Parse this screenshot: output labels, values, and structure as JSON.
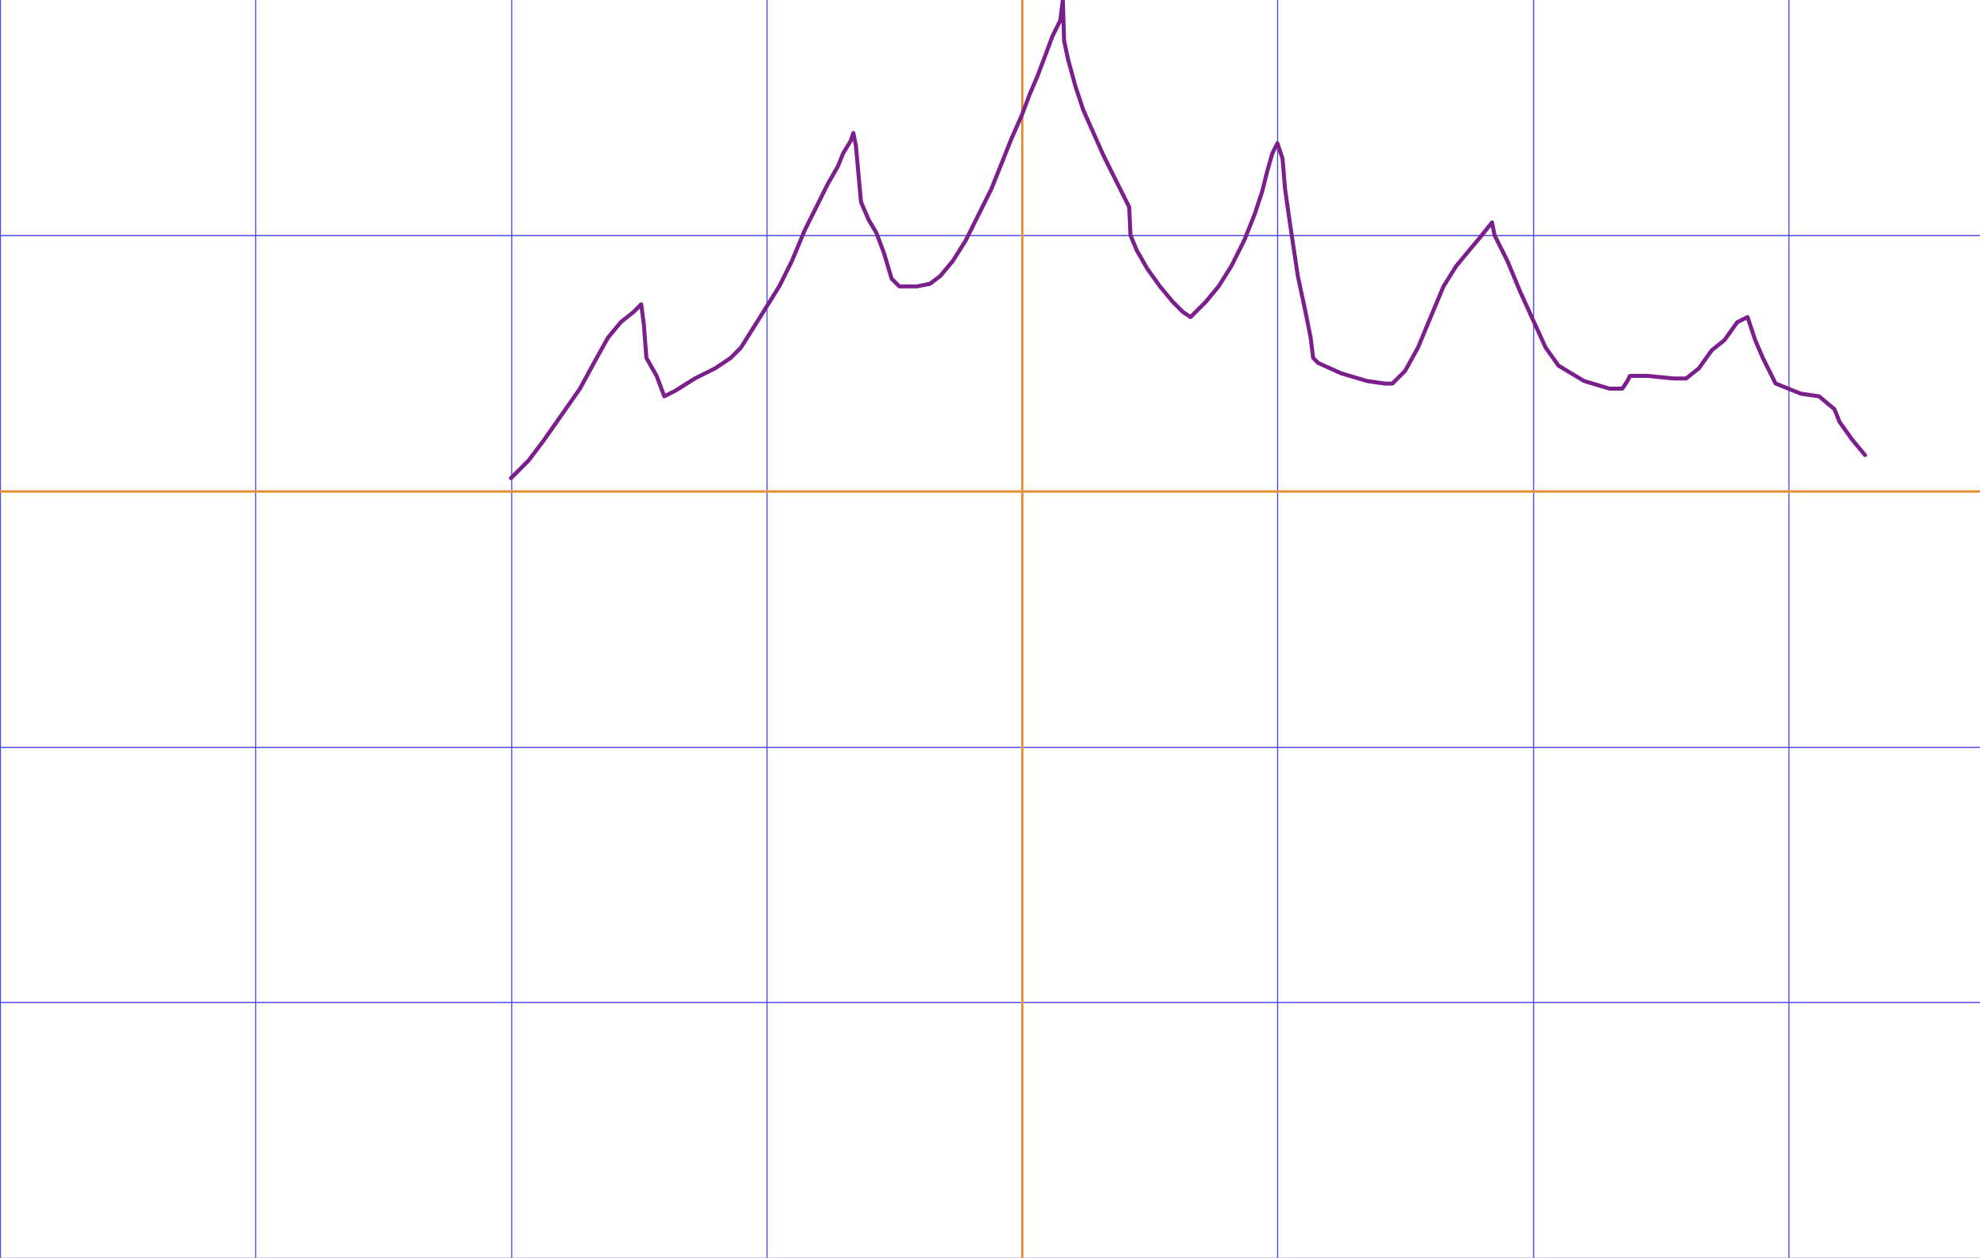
{
  "chart_data": {
    "type": "line",
    "xlim": [
      -4,
      3.75
    ],
    "ylim": [
      -3,
      1.92
    ],
    "grid": true,
    "x_gridlines": [
      -4,
      -3,
      -2,
      -1,
      0,
      1,
      2,
      3
    ],
    "y_gridlines": [
      1,
      0,
      -1,
      -2,
      -3
    ],
    "axes": {
      "x_zero": 0,
      "y_zero": 0
    },
    "colors": {
      "grid": "#4a4ae8",
      "axis": "#e8923a",
      "series": "#7a1f8c",
      "background": "#ffffff"
    },
    "series": [
      {
        "points": [
          [
            -2.0,
            0.05
          ],
          [
            -1.93,
            0.12
          ],
          [
            -1.87,
            0.2
          ],
          [
            -1.8,
            0.3
          ],
          [
            -1.73,
            0.4
          ],
          [
            -1.67,
            0.51
          ],
          [
            -1.62,
            0.6
          ],
          [
            -1.57,
            0.66
          ],
          [
            -1.52,
            0.7
          ],
          [
            -1.49,
            0.73
          ],
          [
            -1.48,
            0.65
          ],
          [
            -1.47,
            0.52
          ],
          [
            -1.43,
            0.45
          ],
          [
            -1.4,
            0.37
          ],
          [
            -1.36,
            0.39
          ],
          [
            -1.28,
            0.44
          ],
          [
            -1.2,
            0.48
          ],
          [
            -1.14,
            0.52
          ],
          [
            -1.1,
            0.56
          ],
          [
            -1.05,
            0.64
          ],
          [
            -1.0,
            0.72
          ],
          [
            -0.95,
            0.8
          ],
          [
            -0.9,
            0.9
          ],
          [
            -0.85,
            1.02
          ],
          [
            -0.8,
            1.12
          ],
          [
            -0.76,
            1.2
          ],
          [
            -0.72,
            1.27
          ],
          [
            -0.7,
            1.32
          ],
          [
            -0.67,
            1.37
          ],
          [
            -0.66,
            1.4
          ],
          [
            -0.65,
            1.35
          ],
          [
            -0.63,
            1.13
          ],
          [
            -0.6,
            1.06
          ],
          [
            -0.57,
            1.01
          ],
          [
            -0.54,
            0.93
          ],
          [
            -0.51,
            0.83
          ],
          [
            -0.48,
            0.8
          ],
          [
            -0.41,
            0.8
          ],
          [
            -0.36,
            0.81
          ],
          [
            -0.32,
            0.84
          ],
          [
            -0.27,
            0.9
          ],
          [
            -0.22,
            0.98
          ],
          [
            -0.17,
            1.08
          ],
          [
            -0.12,
            1.18
          ],
          [
            -0.08,
            1.28
          ],
          [
            -0.04,
            1.38
          ],
          [
            0.0,
            1.47
          ],
          [
            0.03,
            1.55
          ],
          [
            0.06,
            1.62
          ],
          [
            0.09,
            1.7
          ],
          [
            0.12,
            1.78
          ],
          [
            0.15,
            1.84
          ],
          [
            0.16,
            1.92
          ],
          [
            0.165,
            1.76
          ],
          [
            0.18,
            1.69
          ],
          [
            0.21,
            1.58
          ],
          [
            0.24,
            1.49
          ],
          [
            0.28,
            1.4
          ],
          [
            0.32,
            1.31
          ],
          [
            0.36,
            1.23
          ],
          [
            0.39,
            1.17
          ],
          [
            0.42,
            1.11
          ],
          [
            0.425,
            1.0
          ],
          [
            0.45,
            0.94
          ],
          [
            0.49,
            0.87
          ],
          [
            0.54,
            0.8
          ],
          [
            0.59,
            0.74
          ],
          [
            0.63,
            0.7
          ],
          [
            0.66,
            0.68
          ],
          [
            0.68,
            0.7
          ],
          [
            0.72,
            0.74
          ],
          [
            0.77,
            0.8
          ],
          [
            0.82,
            0.88
          ],
          [
            0.87,
            0.98
          ],
          [
            0.91,
            1.08
          ],
          [
            0.94,
            1.17
          ],
          [
            0.96,
            1.25
          ],
          [
            0.98,
            1.32
          ],
          [
            1.0,
            1.36
          ],
          [
            1.02,
            1.3
          ],
          [
            1.03,
            1.18
          ],
          [
            1.05,
            1.04
          ],
          [
            1.08,
            0.84
          ],
          [
            1.11,
            0.7
          ],
          [
            1.13,
            0.6
          ],
          [
            1.14,
            0.52
          ],
          [
            1.16,
            0.5
          ],
          [
            1.25,
            0.46
          ],
          [
            1.35,
            0.43
          ],
          [
            1.42,
            0.42
          ],
          [
            1.45,
            0.42
          ],
          [
            1.5,
            0.47
          ],
          [
            1.55,
            0.56
          ],
          [
            1.6,
            0.68
          ],
          [
            1.65,
            0.8
          ],
          [
            1.7,
            0.88
          ],
          [
            1.75,
            0.94
          ],
          [
            1.8,
            1.0
          ],
          [
            1.84,
            1.05
          ],
          [
            1.85,
            1.0
          ],
          [
            1.9,
            0.9
          ],
          [
            1.95,
            0.78
          ],
          [
            2.0,
            0.67
          ],
          [
            2.05,
            0.56
          ],
          [
            2.1,
            0.49
          ],
          [
            2.2,
            0.43
          ],
          [
            2.3,
            0.4
          ],
          [
            2.35,
            0.4
          ],
          [
            2.37,
            0.43
          ],
          [
            2.38,
            0.45
          ],
          [
            2.45,
            0.45
          ],
          [
            2.55,
            0.44
          ],
          [
            2.6,
            0.44
          ],
          [
            2.65,
            0.48
          ],
          [
            2.7,
            0.55
          ],
          [
            2.75,
            0.59
          ],
          [
            2.8,
            0.66
          ],
          [
            2.84,
            0.68
          ],
          [
            2.87,
            0.59
          ],
          [
            2.9,
            0.52
          ],
          [
            2.93,
            0.46
          ],
          [
            2.95,
            0.42
          ],
          [
            3.05,
            0.38
          ],
          [
            3.12,
            0.37
          ],
          [
            3.18,
            0.32
          ],
          [
            3.2,
            0.27
          ],
          [
            3.25,
            0.2
          ],
          [
            3.3,
            0.14
          ]
        ]
      }
    ]
  }
}
